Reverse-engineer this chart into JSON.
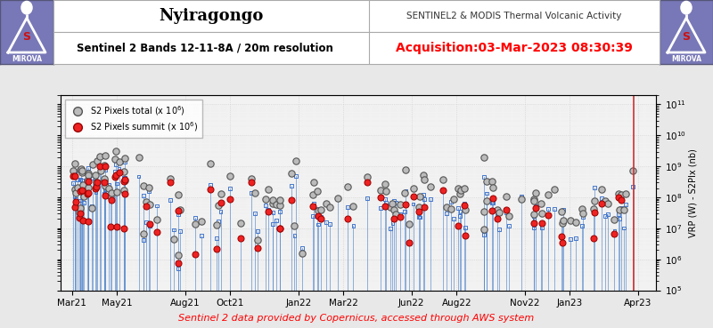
{
  "title": "Nyiragongo",
  "subtitle": "SENTINEL2 & MODIS Thermal Volcanic Activity",
  "band_label": "Sentinel 2 Bands 12-11-8A / 20m resolution",
  "acquisition": "Acquisition:03-Mar-2023 08:30:39",
  "footer": "Sentinel 2 data provided by Copernicus, accessed through AWS system",
  "ylabel_right": "VRP (W) - S2PIx (nb)",
  "legend_total": "S2 Pixels total (x 10$^6$)",
  "legend_summit": "S2 Pixels summit (x 10$^6$)",
  "bg_color": "#e8e8e8",
  "header_bg": "#ffffff",
  "logo_bg": "#7878b8",
  "plot_bg": "#f2f2f2",
  "blue_stem": "#5588cc",
  "blue_square_edge": "#4477cc",
  "gray_circle_face": "#bbbbbb",
  "gray_circle_edge": "#555555",
  "red_circle_face": "#ee2222",
  "red_circle_edge": "#990000",
  "red_vline": "#cc3333",
  "xticklabels": [
    "Mar21",
    "May21",
    "Aug21",
    "Oct21",
    "Jan22",
    "Mar22",
    "Jun22",
    "Aug22",
    "Nov22",
    "Jan23",
    "Apr23"
  ],
  "xtick_positions": [
    0,
    2,
    5,
    7,
    10,
    12,
    15,
    17,
    20,
    22,
    25
  ],
  "xlim": [
    -0.5,
    25.8
  ],
  "ylim_lo": 100000.0,
  "ylim_hi": 200000000000.0,
  "vline_x": 24.8
}
